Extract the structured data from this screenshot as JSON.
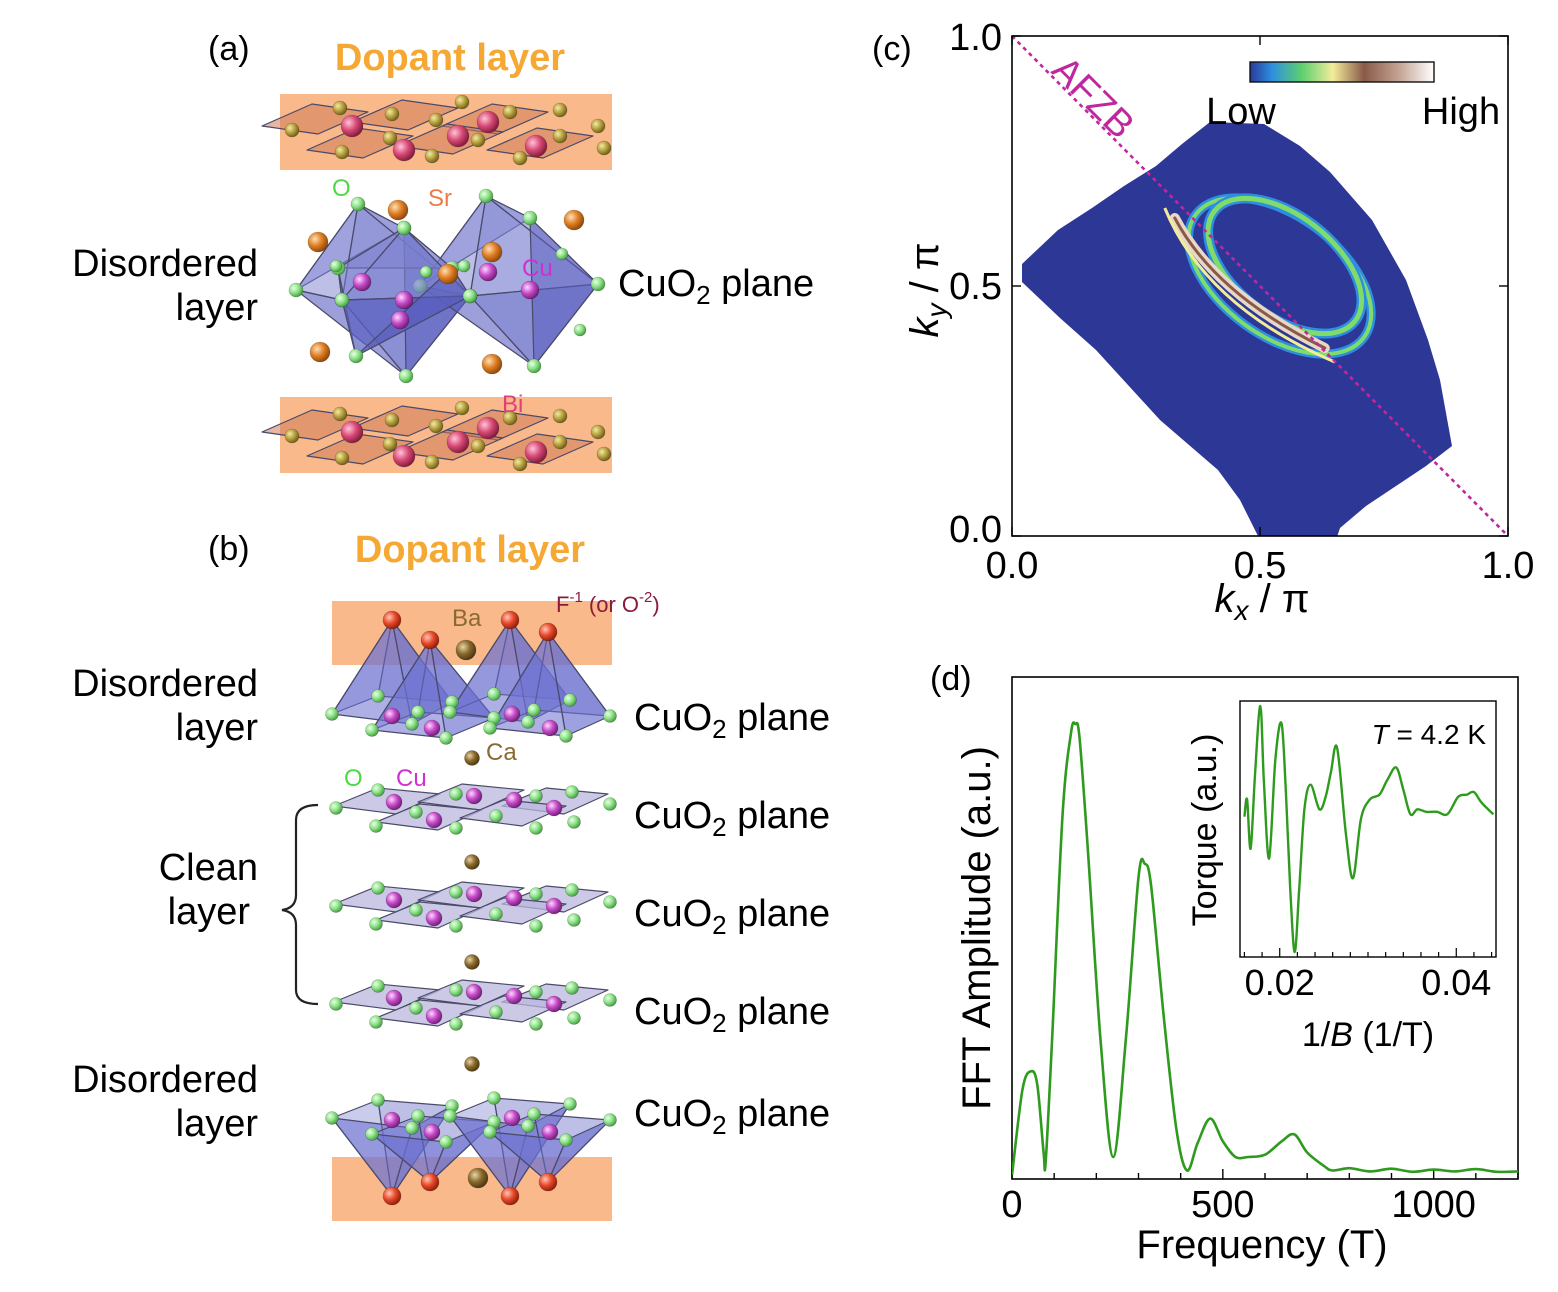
{
  "panel_a": {
    "label": "(a)",
    "dopant_title": "Dopant layer",
    "left_label": [
      "Disordered",
      "layer"
    ],
    "right_label_pre": "CuO",
    "right_label_sub": "2",
    "right_label_post": " plane",
    "atoms": {
      "o": "O",
      "sr": "Sr",
      "cu": "Cu",
      "bi": "Bi"
    }
  },
  "panel_b": {
    "label": "(b)",
    "dopant_title": "Dopant layer",
    "labels": {
      "f_base": "F",
      "f_exp": "-1",
      "or_text": " (or O",
      "o_exp": "-2",
      "close": ")",
      "ba": "Ba",
      "ca": "Ca",
      "o": "O",
      "cu": "Cu"
    },
    "disordered_label": [
      "Disordered",
      "layer"
    ],
    "clean_label": [
      "Clean",
      "layer"
    ],
    "plane_label_pre": "CuO",
    "plane_label_sub": "2",
    "plane_label_post": " plane"
  },
  "colors": {
    "dopant_band": "#f9b98a",
    "dopant_title": "#f5a833",
    "octahedron": "#7b7fcf",
    "plane": "#b9b7dc",
    "oxygen": "#8fe28a",
    "copper": "#c64bc9",
    "strontium": "#e07f23",
    "bismuth": "#d84a76",
    "barium_calcium": "#8a6a2c",
    "fluorine": "#e8492a",
    "oxygen_label": "#4dd941",
    "cu_label": "#d12fd1",
    "sr_label": "#ef7a45",
    "bi_label": "#e0407a",
    "f_label": "#8c1a3a",
    "ba_label": "#8a6a30",
    "afzb": "#c0279e",
    "fft_line": "#2e9a1e",
    "map_background": "#2d3796"
  },
  "panel_c": {
    "label": "(c)",
    "afzb_label": "AFZB",
    "colorbar_low": "Low",
    "colorbar_high": "High",
    "ylabel_base": "k",
    "ylabel_sub": "y",
    "ylabel_rest": " / π",
    "xlabel_base": "k",
    "xlabel_sub": "x",
    "xlabel_rest": " / π",
    "y_ticks": [
      "1.0",
      "0.5",
      "0.0"
    ],
    "x_ticks": [
      "0.0",
      "0.5",
      "1.0"
    ]
  },
  "panel_d": {
    "label": "(d)",
    "ylabel": "FFT Amplitude (a.u.)",
    "xlabel": "Frequency (T)",
    "x_ticks": [
      "0",
      "500",
      "1000"
    ],
    "inset": {
      "ylabel": "Torque (a.u.)",
      "xlabel_pre": "1/",
      "xlabel_var": "B",
      "xlabel_post": " (1/T)",
      "temp_var": "T",
      "temp_rest": " = 4.2 K",
      "x_ticks": [
        "0.02",
        "0.04"
      ]
    }
  },
  "chart_data": [
    {
      "type": "heatmap",
      "panel": "c",
      "xlabel": "kx / π",
      "ylabel": "ky / π",
      "xlim": [
        0.0,
        1.0
      ],
      "ylim": [
        0.0,
        1.0
      ],
      "x_ticks": [
        0.0,
        0.5,
        1.0
      ],
      "y_ticks": [
        0.0,
        0.5,
        1.0
      ],
      "colorbar": [
        "Low",
        "High"
      ],
      "reference_line": {
        "label": "AFZB",
        "from": [
          0.0,
          1.0
        ],
        "to": [
          1.0,
          0.0
        ]
      },
      "pockets": [
        {
          "center": [
            0.55,
            0.54
          ],
          "rx": 0.18,
          "ry": 0.1,
          "rotation_deg": 38,
          "intensity": "high"
        },
        {
          "center": [
            0.54,
            0.52
          ],
          "rx": 0.21,
          "ry": 0.12,
          "rotation_deg": 36,
          "intensity": "medium"
        }
      ]
    },
    {
      "type": "line",
      "panel": "d",
      "xlabel": "Frequency (T)",
      "ylabel": "FFT Amplitude (a.u.)",
      "xlim": [
        0,
        1200
      ],
      "ylim": [
        0,
        1
      ],
      "x_ticks": [
        0,
        500,
        1000
      ],
      "series": [
        {
          "x": [
            0,
            25,
            45,
            60,
            75,
            80,
            95,
            120,
            140,
            150,
            160,
            180,
            210,
            240,
            270,
            300,
            315,
            330,
            360,
            390,
            415,
            440,
            470,
            500,
            530,
            560,
            600,
            640,
            670,
            700,
            740,
            760,
            800,
            850,
            900,
            950,
            1000,
            1050,
            1100,
            1150,
            1200
          ],
          "y": [
            0.0,
            0.19,
            0.23,
            0.2,
            0.05,
            0.03,
            0.3,
            0.8,
            0.98,
            1.0,
            0.97,
            0.72,
            0.3,
            0.04,
            0.3,
            0.66,
            0.69,
            0.64,
            0.35,
            0.1,
            0.01,
            0.07,
            0.125,
            0.075,
            0.04,
            0.04,
            0.045,
            0.075,
            0.09,
            0.05,
            0.02,
            0.01,
            0.015,
            0.008,
            0.014,
            0.007,
            0.012,
            0.008,
            0.013,
            0.007,
            0.008
          ]
        }
      ]
    },
    {
      "type": "line",
      "panel": "d-inset",
      "xlabel": "1/B (1/T)",
      "ylabel": "Torque (a.u.)",
      "annotation": "T = 4.2 K",
      "xlim": [
        0.0155,
        0.0445
      ],
      "ylim": [
        0,
        1
      ],
      "x_ticks": [
        0.02,
        0.04
      ],
      "series": [
        {
          "x": [
            0.016,
            0.0163,
            0.0167,
            0.0172,
            0.0178,
            0.0182,
            0.0188,
            0.0195,
            0.0202,
            0.0207,
            0.0212,
            0.0217,
            0.0222,
            0.0228,
            0.0235,
            0.0245,
            0.0252,
            0.0258,
            0.0265,
            0.0275,
            0.0283,
            0.0292,
            0.0302,
            0.0313,
            0.0322,
            0.0332,
            0.034,
            0.0348,
            0.0356,
            0.0366,
            0.0378,
            0.039,
            0.0402,
            0.0412,
            0.042,
            0.0428,
            0.0436,
            0.0442
          ],
          "y": [
            0.55,
            0.62,
            0.42,
            0.72,
            1.0,
            0.7,
            0.38,
            0.78,
            0.93,
            0.65,
            0.25,
            0.0,
            0.25,
            0.58,
            0.68,
            0.58,
            0.63,
            0.73,
            0.83,
            0.48,
            0.3,
            0.54,
            0.62,
            0.64,
            0.7,
            0.75,
            0.66,
            0.56,
            0.58,
            0.57,
            0.57,
            0.56,
            0.63,
            0.64,
            0.65,
            0.61,
            0.58,
            0.56
          ]
        }
      ]
    }
  ]
}
